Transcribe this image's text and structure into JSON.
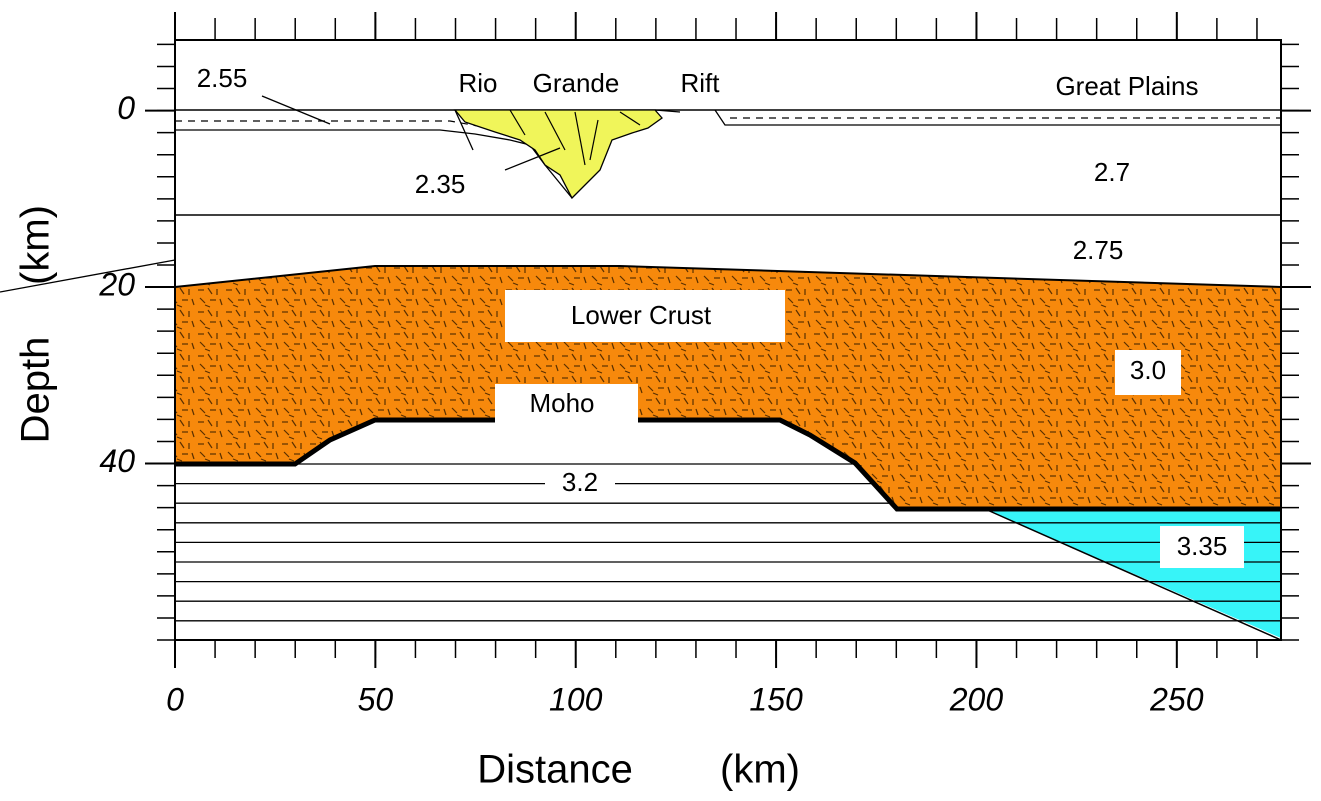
{
  "chart_data": {
    "type": "cross-section",
    "xlabel": "Distance",
    "xlabel_unit": "(km)",
    "ylabel": "Depth",
    "ylabel_unit": "(km)",
    "xlim": [
      0,
      276
    ],
    "ylim": [
      -8,
      60
    ],
    "y_inverted": true,
    "xticks": [
      0,
      50,
      100,
      150,
      200,
      250
    ],
    "yticks": [
      0,
      20,
      40
    ],
    "annotations": [
      "Rio",
      "Grande",
      "Rift",
      "Great Plains",
      "2.55",
      "2.35",
      "2.7",
      "2.75",
      "Lower Crust",
      "3.0",
      "Moho",
      "3.2",
      "3.35"
    ]
  }
}
